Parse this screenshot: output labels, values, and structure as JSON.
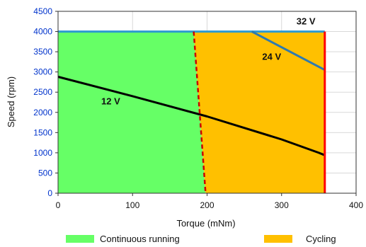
{
  "chart_data": {
    "type": "area",
    "xlabel": "Torque (mNm)",
    "ylabel": "Speed (rpm)",
    "xlim": [
      0,
      400
    ],
    "ylim": [
      0,
      4500
    ],
    "x_ticks": [
      0,
      100,
      200,
      300,
      400
    ],
    "y_ticks": [
      0,
      500,
      1000,
      1500,
      2000,
      2500,
      3000,
      3500,
      4000,
      4500
    ],
    "x_tick_labels": [
      "0",
      "100",
      "200",
      "300",
      "400"
    ],
    "y_tick_labels": [
      "0",
      "500",
      "1000",
      "1500",
      "2000",
      "2500",
      "3000",
      "3500",
      "4000",
      "4500"
    ],
    "grid": true,
    "regions": [
      {
        "name": "Continuous running",
        "color": "#66ff66",
        "points": [
          [
            0,
            0
          ],
          [
            0,
            4000
          ],
          [
            182,
            4000
          ],
          [
            198,
            0
          ]
        ]
      },
      {
        "name": "Cycling",
        "color": "#ffc000",
        "points": [
          [
            198,
            0
          ],
          [
            182,
            4000
          ],
          [
            358,
            4000
          ],
          [
            358,
            0
          ]
        ]
      }
    ],
    "lines": [
      {
        "label": "32 V",
        "color": "#2e9ad0",
        "points": [
          [
            0,
            4000
          ],
          [
            358,
            4000
          ]
        ],
        "label_at": [
          320,
          4180
        ]
      },
      {
        "label": "24 V",
        "color": "#2e7ab0",
        "points": [
          [
            260,
            4000
          ],
          [
            358,
            3050
          ]
        ],
        "label_at": [
          274,
          3300
        ]
      },
      {
        "label": "12 V",
        "color": "#000000",
        "points": [
          [
            0,
            2880
          ],
          [
            100,
            2400
          ],
          [
            200,
            1900
          ],
          [
            300,
            1330
          ],
          [
            350,
            1000
          ],
          [
            358,
            940
          ]
        ],
        "label_at": [
          58,
          2200
        ]
      },
      {
        "label": "",
        "color": "#ff0000",
        "style": "vertical-limit",
        "points": [
          [
            358,
            4000
          ],
          [
            358,
            0
          ]
        ]
      },
      {
        "label": "",
        "color": "#cc0000",
        "style": "dashed",
        "points": [
          [
            182,
            4000
          ],
          [
            198,
            0
          ]
        ]
      }
    ]
  },
  "legend": [
    {
      "label": "Continuous running",
      "color": "#66ff66"
    },
    {
      "label": "Cycling",
      "color": "#ffc000"
    }
  ]
}
